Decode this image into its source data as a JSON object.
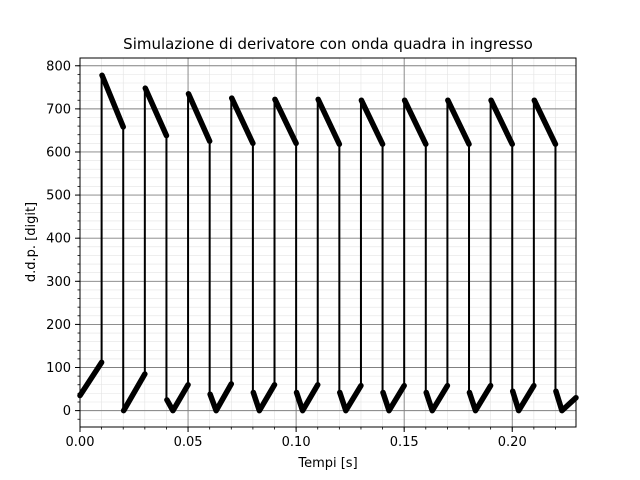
{
  "chart_data": {
    "type": "line",
    "title": "Simulazione di derivatore con onda quadra in ingresso",
    "xlabel": "Tempi [s]",
    "ylabel": "d.d.p. [digit]",
    "xlim": [
      0.0,
      0.2295
    ],
    "ylim": [
      -38,
      818
    ],
    "x_ticks": [
      0.0,
      0.05,
      0.1,
      0.15,
      0.2
    ],
    "x_tick_labels": [
      "0.00",
      "0.05",
      "0.10",
      "0.15",
      "0.20"
    ],
    "y_ticks": [
      0,
      100,
      200,
      300,
      400,
      500,
      600,
      700,
      800
    ],
    "y_tick_labels": [
      "0",
      "100",
      "200",
      "300",
      "400",
      "500",
      "600",
      "700",
      "800"
    ],
    "grid": {
      "major": true,
      "minor": true
    },
    "line_color": "#000000",
    "series": [
      {
        "segments": [
          {
            "x": [
              0.0,
              0.01
            ],
            "y": [
              35,
              112
            ]
          },
          {
            "x": [
              0.0102,
              0.02
            ],
            "y": [
              778,
              658
            ]
          },
          {
            "x": [
              0.0202,
              0.03
            ],
            "y": [
              0,
              85
            ]
          },
          {
            "x": [
              0.0302,
              0.04
            ],
            "y": [
              748,
              638
            ]
          },
          {
            "x": [
              0.0402,
              0.043,
              0.05
            ],
            "y": [
              25,
              0,
              60
            ]
          },
          {
            "x": [
              0.0502,
              0.06
            ],
            "y": [
              735,
              625
            ]
          },
          {
            "x": [
              0.0602,
              0.063,
              0.07
            ],
            "y": [
              38,
              0,
              62
            ]
          },
          {
            "x": [
              0.0702,
              0.08
            ],
            "y": [
              725,
              620
            ]
          },
          {
            "x": [
              0.0802,
              0.083,
              0.09
            ],
            "y": [
              42,
              0,
              60
            ]
          },
          {
            "x": [
              0.0902,
              0.1
            ],
            "y": [
              722,
              620
            ]
          },
          {
            "x": [
              0.1002,
              0.103,
              0.11
            ],
            "y": [
              42,
              0,
              60
            ]
          },
          {
            "x": [
              0.1102,
              0.12
            ],
            "y": [
              722,
              618
            ]
          },
          {
            "x": [
              0.1202,
              0.123,
              0.13
            ],
            "y": [
              42,
              0,
              58
            ]
          },
          {
            "x": [
              0.1302,
              0.14
            ],
            "y": [
              720,
              618
            ]
          },
          {
            "x": [
              0.1402,
              0.143,
              0.15
            ],
            "y": [
              42,
              0,
              58
            ]
          },
          {
            "x": [
              0.1502,
              0.16
            ],
            "y": [
              720,
              618
            ]
          },
          {
            "x": [
              0.1602,
              0.163,
              0.17
            ],
            "y": [
              42,
              0,
              58
            ]
          },
          {
            "x": [
              0.1702,
              0.18
            ],
            "y": [
              720,
              618
            ]
          },
          {
            "x": [
              0.1802,
              0.183,
              0.19
            ],
            "y": [
              42,
              0,
              58
            ]
          },
          {
            "x": [
              0.1902,
              0.2
            ],
            "y": [
              720,
              618
            ]
          },
          {
            "x": [
              0.2002,
              0.203,
              0.21
            ],
            "y": [
              45,
              0,
              58
            ]
          },
          {
            "x": [
              0.2102,
              0.22
            ],
            "y": [
              720,
              618
            ]
          },
          {
            "x": [
              0.2202,
              0.223,
              0.2295
            ],
            "y": [
              45,
              0,
              30
            ]
          }
        ]
      }
    ]
  }
}
